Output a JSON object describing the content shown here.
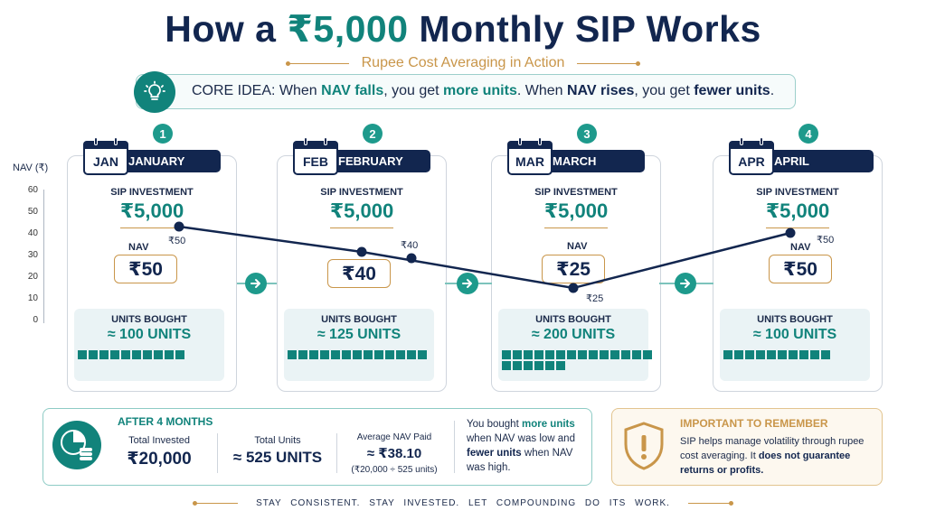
{
  "header": {
    "title_prefix": "How a ",
    "title_amount": "₹5,000",
    "title_suffix": " Monthly SIP Works",
    "subtitle": "Rupee Cost Averaging in Action"
  },
  "core_idea": {
    "lead": "CORE IDEA: When ",
    "nav_falls": "NAV falls",
    "mid1": ", you get ",
    "more_units": "more units",
    "mid2": ". When ",
    "nav_rises": "NAV rises",
    "mid3": ", you get ",
    "fewer_units": "fewer units",
    "end": ".",
    "icon": "lightbulb-icon"
  },
  "chart_data": {
    "type": "line",
    "ylabel": "NAV (₹)",
    "ylim": [
      0,
      60
    ],
    "yticks": [
      0,
      10,
      20,
      30,
      40,
      50,
      60
    ],
    "categories": [
      "JAN",
      "FEB",
      "MAR",
      "APR"
    ],
    "values": [
      50,
      40,
      25,
      50
    ],
    "point_labels": [
      "₹50",
      "₹40",
      "₹25",
      "₹50"
    ]
  },
  "months": [
    {
      "num": "1",
      "short": "JAN",
      "long": "JANUARY",
      "sip_label": "SIP INVESTMENT",
      "sip": "₹5,000",
      "nav_label": "NAV",
      "nav": "₹50",
      "units_label": "UNITS BOUGHT",
      "units": "≈ 100 UNITS",
      "units_count": 100
    },
    {
      "num": "2",
      "short": "FEB",
      "long": "FEBRUARY",
      "sip_label": "SIP INVESTMENT",
      "sip": "₹5,000",
      "nav_label": "NAV",
      "nav": "₹40",
      "units_label": "UNITS BOUGHT",
      "units": "≈ 125 UNITS",
      "units_count": 125
    },
    {
      "num": "3",
      "short": "MAR",
      "long": "MARCH",
      "sip_label": "SIP INVESTMENT",
      "sip": "₹5,000",
      "nav_label": "NAV",
      "nav": "₹25",
      "units_label": "UNITS BOUGHT",
      "units": "≈ 200 UNITS",
      "units_count": 200
    },
    {
      "num": "4",
      "short": "APR",
      "long": "APRIL",
      "sip_label": "SIP INVESTMENT",
      "sip": "₹5,000",
      "nav_label": "NAV",
      "nav": "₹50",
      "units_label": "UNITS BOUGHT",
      "units": "≈ 100 UNITS",
      "units_count": 100
    }
  ],
  "summary": {
    "heading": "AFTER 4 MONTHS",
    "total_invested_label": "Total Invested",
    "total_invested": "₹20,000",
    "total_units_label": "Total Units",
    "total_units": "≈ 525 UNITS",
    "avg_nav_label": "Average NAV Paid",
    "avg_nav": "≈ ₹38.10",
    "avg_nav_calc": "(₹20,000 ÷ 525 units)",
    "note_1": "You bought ",
    "note_more": "more units",
    "note_2": " when NAV was low and ",
    "note_fewer": "fewer units",
    "note_3": " when NAV was high.",
    "icon": "pie-chart-coins-icon"
  },
  "remember": {
    "title": "IMPORTANT TO REMEMBER",
    "text_1": "SIP helps manage volatility through rupee cost averaging. It ",
    "text_bold": "does not guarantee returns or profits.",
    "icon": "warning-shield-icon"
  },
  "footer": {
    "text": "STAY CONSISTENT.   STAY INVESTED.   LET COMPOUNDING DO ITS WORK."
  },
  "colors": {
    "navy": "#12264f",
    "teal": "#11837b",
    "gold": "#c9964a"
  }
}
